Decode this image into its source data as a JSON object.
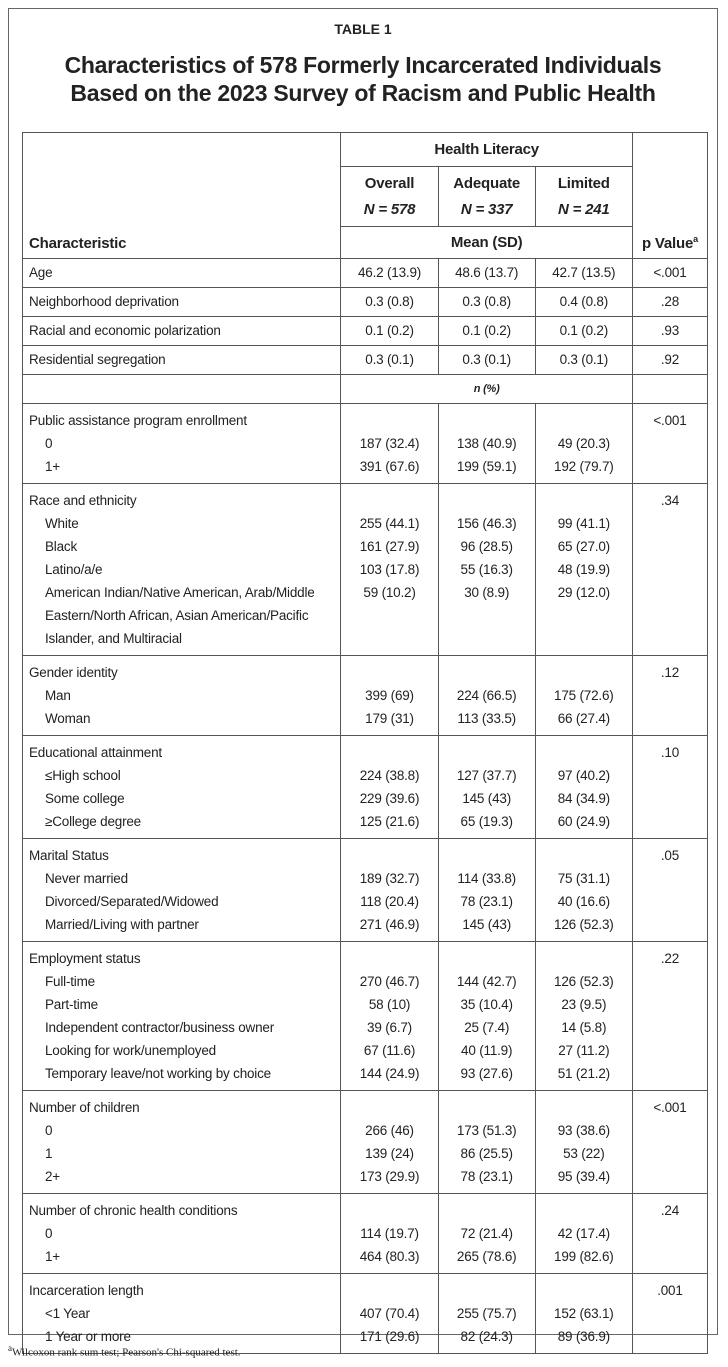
{
  "label": "TABLE 1",
  "title_lines": [
    "Characteristics of 578 Formerly Incarcerated Individuals",
    "Based on the 2023 Survey of Racism and Public Health"
  ],
  "header": {
    "characteristic": "Characteristic",
    "group": "Health Literacy",
    "columns": [
      {
        "name": "Overall",
        "n": "N = 578"
      },
      {
        "name": "Adequate",
        "n": "N = 337"
      },
      {
        "name": "Limited",
        "n": "N = 241"
      }
    ],
    "mean_label": "Mean (SD)",
    "p_value": "p Value",
    "p_mark": "a"
  },
  "mean_rows": [
    [
      "Age",
      "46.2 (13.9)",
      "48.6 (13.7)",
      "42.7 (13.5)",
      "<.001"
    ],
    [
      "Neighborhood deprivation",
      "0.3 (0.8)",
      "0.3 (0.8)",
      "0.4 (0.8)",
      ".28"
    ],
    [
      "Racial and economic polarization",
      "0.1 (0.2)",
      "0.1 (0.2)",
      "0.1 (0.2)",
      ".93"
    ],
    [
      "Residential segregation",
      "0.3 (0.1)",
      "0.3 (0.1)",
      "0.3 (0.1)",
      ".92"
    ]
  ],
  "n_label": "n (%)",
  "groups": [
    {
      "label": "Public assistance program enrollment",
      "p": "<.001",
      "rows": [
        [
          "0",
          "187 (32.4)",
          "138 (40.9)",
          "49 (20.3)"
        ],
        [
          "1+",
          "391 (67.6)",
          "199 (59.1)",
          "192 (79.7)"
        ]
      ]
    },
    {
      "label": "Race and ethnicity",
      "p": ".34",
      "rows": [
        [
          "White",
          "255 (44.1)",
          "156 (46.3)",
          "99 (41.1)"
        ],
        [
          "Black",
          "161 (27.9)",
          "96 (28.5)",
          "65 (27.0)"
        ],
        [
          "Latino/a/e",
          "103 (17.8)",
          "55 (16.3)",
          "48 (19.9)"
        ],
        [
          "American Indian/Native American, Arab/Middle Eastern/North African, Asian American/Pacific Islander, and Multiracial",
          "59 (10.2)",
          "30 (8.9)",
          "29 (12.0)"
        ]
      ]
    },
    {
      "label": "Gender identity",
      "p": ".12",
      "rows": [
        [
          "Man",
          "399 (69)",
          "224 (66.5)",
          "175 (72.6)"
        ],
        [
          "Woman",
          "179 (31)",
          "113 (33.5)",
          "66 (27.4)"
        ]
      ]
    },
    {
      "label": "Educational attainment",
      "p": ".10",
      "rows": [
        [
          "≤High school",
          "224 (38.8)",
          "127 (37.7)",
          "97 (40.2)"
        ],
        [
          "Some college",
          "229 (39.6)",
          "145 (43)",
          "84 (34.9)"
        ],
        [
          "≥College degree",
          "125 (21.6)",
          "65 (19.3)",
          "60 (24.9)"
        ]
      ]
    },
    {
      "label": "Marital Status",
      "p": ".05",
      "rows": [
        [
          "Never married",
          "189 (32.7)",
          "114 (33.8)",
          "75 (31.1)"
        ],
        [
          "Divorced/Separated/Widowed",
          "118 (20.4)",
          "78 (23.1)",
          "40 (16.6)"
        ],
        [
          "Married/Living with partner",
          "271 (46.9)",
          "145 (43)",
          "126 (52.3)"
        ]
      ]
    },
    {
      "label": "Employment status",
      "p": ".22",
      "rows": [
        [
          "Full-time",
          "270 (46.7)",
          "144 (42.7)",
          "126 (52.3)"
        ],
        [
          "Part-time",
          "58 (10)",
          "35 (10.4)",
          "23 (9.5)"
        ],
        [
          "Independent contractor/business owner",
          "39 (6.7)",
          "25 (7.4)",
          "14 (5.8)"
        ],
        [
          "Looking for work/unemployed",
          "67 (11.6)",
          "40 (11.9)",
          "27 (11.2)"
        ],
        [
          "Temporary leave/not working by choice",
          "144 (24.9)",
          "93 (27.6)",
          "51 (21.2)"
        ]
      ]
    },
    {
      "label": "Number of children",
      "p": "<.001",
      "rows": [
        [
          "0",
          "266 (46)",
          "173 (51.3)",
          "93 (38.6)"
        ],
        [
          "1",
          "139 (24)",
          "86 (25.5)",
          "53 (22)"
        ],
        [
          "2+",
          "173 (29.9)",
          "78 (23.1)",
          "95 (39.4)"
        ]
      ]
    },
    {
      "label": "Number of chronic health conditions",
      "p": ".24",
      "rows": [
        [
          "0",
          "114 (19.7)",
          "72 (21.4)",
          "42 (17.4)"
        ],
        [
          "1+",
          "464 (80.3)",
          "265 (78.6)",
          "199 (82.6)"
        ]
      ]
    },
    {
      "label": "Incarceration length",
      "p": ".001",
      "rows": [
        [
          "<1 Year",
          "407 (70.4)",
          "255 (75.7)",
          "152 (63.1)"
        ],
        [
          "1 Year or more",
          "171 (29.6)",
          "82 (24.3)",
          "89 (36.9)"
        ]
      ]
    }
  ],
  "footnote": {
    "mark": "a",
    "text": "Wilcoxon rank sum test; Pearson's Chi-squared test."
  }
}
